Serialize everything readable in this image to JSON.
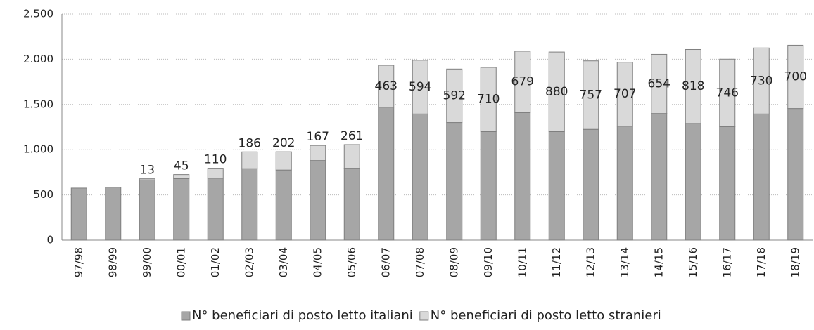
{
  "chart_data": {
    "type": "stacked_bar",
    "categories": [
      "97/98",
      "98/99",
      "99/00",
      "00/01",
      "01/02",
      "02/03",
      "03/04",
      "04/05",
      "05/06",
      "06/07",
      "07/08",
      "08/09",
      "09/10",
      "10/11",
      "11/12",
      "12/13",
      "13/14",
      "14/15",
      "15/16",
      "16/17",
      "17/18",
      "18/19"
    ],
    "series": [
      {
        "name": "N° beneficiari di posto letto italiani",
        "color": "#a6a6a6",
        "values": [
          575,
          585,
          665,
          680,
          685,
          790,
          775,
          880,
          795,
          1470,
          1395,
          1300,
          1200,
          1410,
          1200,
          1225,
          1260,
          1400,
          1290,
          1255,
          1395,
          1455
        ]
      },
      {
        "name": "N° beneficiari di posto letto stranieri",
        "color": "#d9d9d9",
        "values": [
          null,
          null,
          13,
          45,
          110,
          186,
          202,
          167,
          261,
          463,
          594,
          592,
          710,
          679,
          880,
          757,
          707,
          654,
          818,
          746,
          730,
          700
        ]
      }
    ],
    "ylim": [
      0,
      2500
    ],
    "yticks": [
      0,
      500,
      {
        "value": 1000,
        "label": "1.000"
      },
      {
        "value": 1500,
        "label": "1.500"
      },
      {
        "value": 2000,
        "label": "2.000"
      },
      {
        "value": 2500,
        "label": "2.500"
      }
    ],
    "grid": true,
    "legend": "bottom"
  }
}
